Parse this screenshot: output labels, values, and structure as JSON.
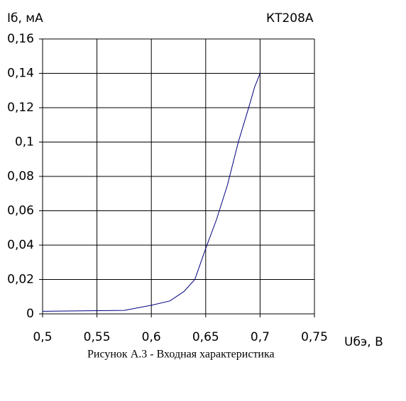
{
  "chart_data": {
    "type": "line",
    "title": "КТ208А",
    "caption": "Рисунок А.3 - Входная характеристика",
    "y_label": "Iб, мА",
    "x_label": "Uбэ, В",
    "x": [
      0.5,
      0.575,
      0.6,
      0.617,
      0.63,
      0.64,
      0.65,
      0.66,
      0.67,
      0.68,
      0.69,
      0.695,
      0.7
    ],
    "series": [
      {
        "color": "#000080",
        "values": [
          0.0015,
          0.002,
          0.005,
          0.0075,
          0.013,
          0.02,
          0.038,
          0.055,
          0.075,
          0.1,
          0.121,
          0.132,
          0.14
        ]
      }
    ],
    "xlim": [
      0.5,
      0.75
    ],
    "xticks": [
      {
        "value": 0.5,
        "label": "0,5"
      },
      {
        "value": 0.55,
        "label": "0,55"
      },
      {
        "value": 0.6,
        "label": "0,6"
      },
      {
        "value": 0.65,
        "label": "0,65"
      },
      {
        "value": 0.7,
        "label": "0,7"
      },
      {
        "value": 0.75,
        "label": "0,75"
      }
    ],
    "ylim": [
      0,
      0.16
    ],
    "yticks": [
      0,
      {
        "value": 0.02,
        "label": "0,02"
      },
      {
        "value": 0.04,
        "label": "0,04"
      },
      {
        "value": 0.06,
        "label": "0,06"
      },
      {
        "value": 0.08,
        "label": "0,08"
      },
      {
        "value": 0.1,
        "label": "0,1"
      },
      {
        "value": 0.12,
        "label": "0,12"
      },
      {
        "value": 0.14,
        "label": "0,14"
      },
      {
        "value": 0.16,
        "label": "0,16"
      }
    ],
    "grid": true
  }
}
